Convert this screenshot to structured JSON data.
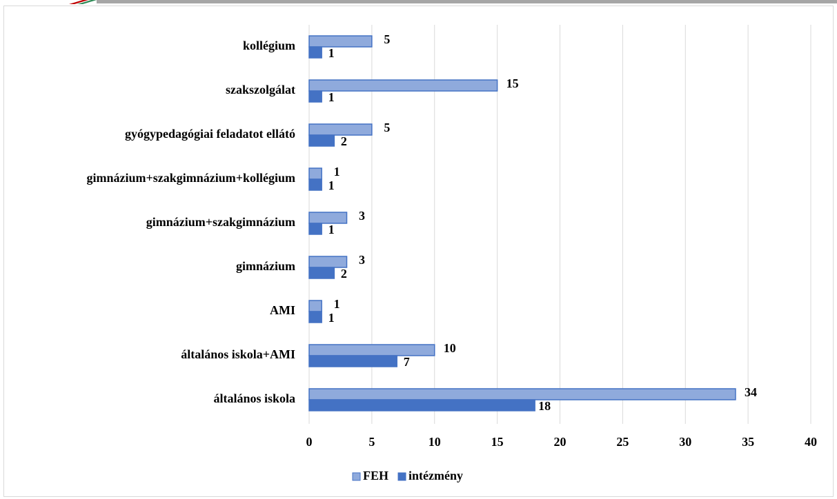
{
  "chart_data": {
    "type": "bar",
    "orientation": "horizontal",
    "categories": [
      "kollégium",
      "szakszolgálat",
      "gyógypedagógiai feladatot ellátó",
      "gimnázium+szakgimnázium+kollégium",
      "gimnázium+szakgimnázium",
      "gimnázium",
      "AMI",
      "általános iskola+AMI",
      "általános iskola"
    ],
    "series": [
      {
        "name": "FEH",
        "color": "#8faadc",
        "values": [
          5,
          15,
          5,
          1,
          3,
          3,
          1,
          10,
          34
        ]
      },
      {
        "name": "intézmény",
        "color": "#4472c4",
        "values": [
          1,
          1,
          2,
          1,
          1,
          2,
          1,
          7,
          18
        ]
      }
    ],
    "xlim": [
      0,
      40
    ],
    "xticks": [
      0,
      5,
      10,
      15,
      20,
      25,
      30,
      35,
      40
    ],
    "grid": true,
    "legend": "bottom"
  }
}
